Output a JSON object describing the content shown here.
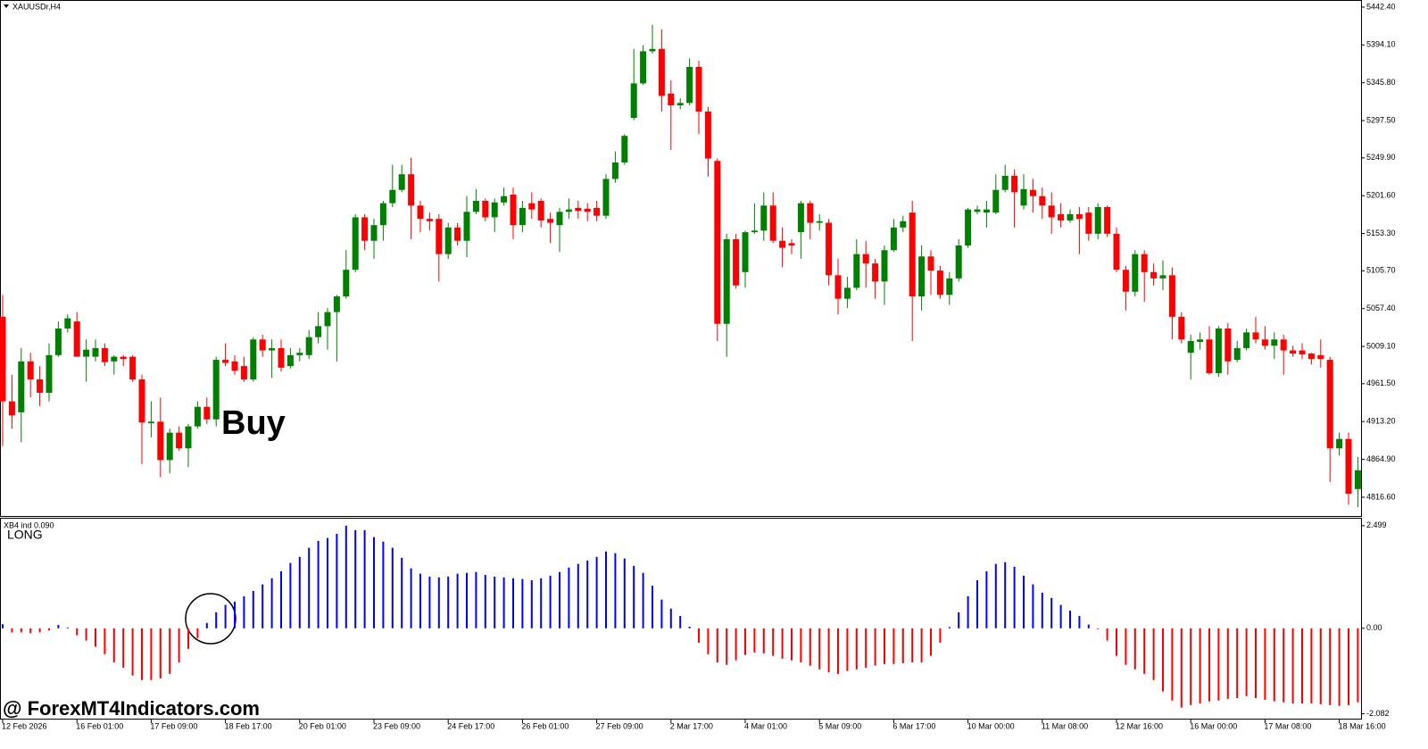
{
  "chart_data": [
    {
      "type": "candlestick",
      "title": "XAUUSDr,H4",
      "annotation": "Buy",
      "up_color": "#008000",
      "down_color": "#ff0000",
      "open": [
        5047,
        4939,
        4925,
        4990,
        4967,
        4950,
        4998,
        5032,
        5041,
        4996,
        4996,
        5007,
        4990,
        4996,
        4996,
        4967,
        4911,
        4913,
        4864,
        4899,
        4879,
        4907,
        4932,
        4916,
        4992,
        4990,
        4984,
        4967,
        5018,
        5004,
        5007,
        4984,
        4998,
        4998,
        5021,
        5035,
        5053,
        5073,
        5107,
        5174,
        5144,
        5164,
        5192,
        5209,
        5229,
        5189,
        5172,
        5172,
        5127,
        5161,
        5144,
        5181,
        5195,
        5174,
        5193,
        5203,
        5164,
        5192,
        5195,
        5172,
        5164,
        5181,
        5186,
        5185,
        5186,
        5176,
        5223,
        5244,
        5301,
        5345,
        5386,
        5389,
        5332,
        5317,
        5320,
        5366,
        5309,
        5246,
        5038,
        5146,
        5104,
        5155,
        5157,
        5189,
        5144,
        5141,
        5155,
        5192,
        5167,
        5167,
        5100,
        5070,
        5084,
        5127,
        5115,
        5092,
        5132,
        5161,
        5180,
        5073,
        5124,
        5106,
        5075,
        5096,
        5138,
        5181,
        5180,
        5180,
        5209,
        5227,
        5189,
        5209,
        5201,
        5189,
        5178,
        5170,
        5178,
        5180,
        5153,
        5187,
        5153,
        5107,
        5079,
        5127,
        5104,
        5096,
        5100,
        5047,
        5001,
        5015,
        5018,
        4975,
        5032,
        4992,
        5007,
        5027,
        5018,
        5010,
        5018,
        5004,
        5004,
        5000,
        4998,
        4992,
        4879,
        4891,
        4827
      ],
      "high": [
        5075,
        4973,
        5007,
        5001,
        4984,
        5013,
        5041,
        5050,
        5053,
        5018,
        5018,
        5013,
        4998,
        4998,
        4998,
        4973,
        4939,
        4944,
        4904,
        4907,
        4910,
        4939,
        4944,
        4996,
        5013,
        4998,
        4996,
        5021,
        5024,
        5018,
        5018,
        5007,
        5007,
        5030,
        5053,
        5058,
        5075,
        5132,
        5178,
        5178,
        5172,
        5195,
        5241,
        5241,
        5250,
        5195,
        5180,
        5178,
        5167,
        5167,
        5201,
        5210,
        5198,
        5198,
        5212,
        5212,
        5195,
        5206,
        5198,
        5180,
        5186,
        5198,
        5195,
        5192,
        5195,
        5229,
        5258,
        5280,
        5389,
        5394,
        5420,
        5414,
        5349,
        5326,
        5377,
        5374,
        5315,
        5249,
        5153,
        5153,
        5157,
        5192,
        5206,
        5206,
        5161,
        5146,
        5195,
        5195,
        5178,
        5172,
        5121,
        5098,
        5146,
        5144,
        5121,
        5138,
        5172,
        5176,
        5195,
        5138,
        5132,
        5112,
        5104,
        5146,
        5186,
        5189,
        5195,
        5229,
        5241,
        5235,
        5229,
        5223,
        5212,
        5206,
        5192,
        5184,
        5187,
        5187,
        5192,
        5189,
        5161,
        5112,
        5132,
        5132,
        5115,
        5119,
        5110,
        5053,
        5024,
        5027,
        5035,
        5035,
        5039,
        5016,
        5032,
        5047,
        5035,
        5027,
        5024,
        5010,
        5013,
        5001,
        5018,
        4996,
        4899,
        4899,
        4868
      ],
      "low": [
        4882,
        4904,
        4887,
        4944,
        4933,
        4939,
        4996,
        5027,
        4996,
        4964,
        4990,
        4984,
        4973,
        4984,
        4964,
        4859,
        4893,
        4842,
        4847,
        4876,
        4855,
        4904,
        4910,
        4907,
        4984,
        4973,
        4964,
        4964,
        4996,
        4969,
        4977,
        4981,
        4990,
        4993,
        5013,
        5005,
        4990,
        5070,
        5104,
        5132,
        5121,
        5144,
        5187,
        5206,
        5146,
        5155,
        5157,
        5092,
        5121,
        5138,
        5123,
        5178,
        5169,
        5155,
        5189,
        5146,
        5155,
        5172,
        5161,
        5141,
        5130,
        5172,
        5172,
        5169,
        5169,
        5172,
        5218,
        5241,
        5298,
        5343,
        5383,
        5309,
        5260,
        5312,
        5317,
        5280,
        5226,
        5016,
        4996,
        5083,
        5084,
        5153,
        5144,
        5141,
        5110,
        5127,
        5121,
        5146,
        5157,
        5087,
        5050,
        5058,
        5081,
        5084,
        5070,
        5062,
        5130,
        5155,
        5016,
        5055,
        5075,
        5070,
        5062,
        5092,
        5135,
        5178,
        5161,
        5178,
        5206,
        5161,
        5184,
        5180,
        5172,
        5153,
        5161,
        5167,
        5127,
        5144,
        5146,
        5149,
        5104,
        5055,
        5073,
        5066,
        5087,
        5081,
        5018,
        5013,
        4967,
        5005,
        4973,
        4970,
        4973,
        4989,
        5004,
        5013,
        5005,
        4993,
        4973,
        4996,
        4993,
        4986,
        4982,
        4836,
        4870,
        4807,
        4804
      ],
      "close": [
        4939,
        4921,
        4990,
        4967,
        4950,
        4998,
        5032,
        5045,
        4996,
        5005,
        5007,
        4989,
        4996,
        4993,
        4967,
        4912,
        4913,
        4864,
        4899,
        4879,
        4907,
        4932,
        4916,
        4992,
        4988,
        4978,
        4967,
        5018,
        5004,
        5007,
        4982,
        4998,
        5001,
        5021,
        5035,
        5053,
        5073,
        5107,
        5174,
        5144,
        5164,
        5192,
        5209,
        5229,
        5189,
        5172,
        5169,
        5127,
        5161,
        5144,
        5181,
        5195,
        5174,
        5193,
        5201,
        5164,
        5186,
        5184,
        5170,
        5167,
        5181,
        5184,
        5182,
        5181,
        5176,
        5223,
        5244,
        5278,
        5345,
        5386,
        5389,
        5329,
        5317,
        5320,
        5366,
        5309,
        5249,
        5038,
        5146,
        5087,
        5155,
        5157,
        5189,
        5144,
        5135,
        5138,
        5192,
        5167,
        5169,
        5100,
        5070,
        5084,
        5127,
        5115,
        5092,
        5132,
        5161,
        5169,
        5073,
        5124,
        5106,
        5075,
        5096,
        5138,
        5184,
        5184,
        5184,
        5209,
        5227,
        5206,
        5210,
        5201,
        5189,
        5174,
        5170,
        5178,
        5172,
        5153,
        5187,
        5153,
        5107,
        5079,
        5127,
        5104,
        5096,
        5100,
        5047,
        5018,
        5016,
        5018,
        4975,
        5032,
        4990,
        5007,
        5027,
        5018,
        5010,
        5018,
        5004,
        5000,
        4999,
        4993,
        4993,
        4879,
        4891,
        4821,
        4851
      ],
      "ylim": [
        4792.6,
        5449.2
      ],
      "yticks": [
        {
          "value": 5442.4,
          "label": "5442.40"
        },
        {
          "value": 5394.1,
          "label": "5394.10"
        },
        {
          "value": 5345.8,
          "label": "5345.80"
        },
        {
          "value": 5297.5,
          "label": "5297.50"
        },
        {
          "value": 5249.9,
          "label": "5249.90"
        },
        {
          "value": 5201.6,
          "label": "5201.60"
        },
        {
          "value": 5153.3,
          "label": "5153.30"
        },
        {
          "value": 5105.7,
          "label": "5105.70"
        },
        {
          "value": 5057.4,
          "label": "5057.40"
        },
        {
          "value": 5009.1,
          "label": "5009.10"
        },
        {
          "value": 4961.5,
          "label": "4961.50"
        },
        {
          "value": 4913.2,
          "label": "4913.20"
        },
        {
          "value": 4864.9,
          "label": "4864.90"
        },
        {
          "value": 4816.6,
          "label": "4816.60"
        }
      ],
      "xticks": [
        {
          "value": 0,
          "label": "12 Feb 2026"
        },
        {
          "value": 8,
          "label": "16 Feb 01:00"
        },
        {
          "value": 16,
          "label": "17 Feb 09:00"
        },
        {
          "value": 24,
          "label": "18 Feb 17:00"
        },
        {
          "value": 32,
          "label": "20 Feb 01:00"
        },
        {
          "value": 40,
          "label": "23 Feb 09:00"
        },
        {
          "value": 48,
          "label": "24 Feb 17:00"
        },
        {
          "value": 56,
          "label": "26 Feb 01:00"
        },
        {
          "value": 64,
          "label": "27 Feb 09:00"
        },
        {
          "value": 72,
          "label": "2 Mar 17:00"
        },
        {
          "value": 80,
          "label": "4 Mar 01:00"
        },
        {
          "value": 88,
          "label": "5 Mar 09:00"
        },
        {
          "value": 96,
          "label": "6 Mar 17:00"
        },
        {
          "value": 104,
          "label": "10 Mar 00:00"
        },
        {
          "value": 112,
          "label": "11 Mar 08:00"
        },
        {
          "value": 120,
          "label": "12 Mar 16:00"
        },
        {
          "value": 128,
          "label": "16 Mar 00:00"
        },
        {
          "value": 136,
          "label": "17 Mar 08:00"
        },
        {
          "value": 144,
          "label": "18 Mar 16:00"
        }
      ]
    },
    {
      "type": "bar",
      "title": "XB4 ind 0.090",
      "label": "LONG",
      "label_color": "#33dd33",
      "positive_color": "#0000ff",
      "negative_color": "#ff0000",
      "values": [
        0.1,
        -0.1,
        -0.1,
        -0.12,
        -0.1,
        -0.05,
        0.08,
        0.02,
        -0.17,
        -0.3,
        -0.45,
        -0.63,
        -0.83,
        -0.96,
        -1.15,
        -1.26,
        -1.26,
        -1.22,
        -1.11,
        -0.83,
        -0.5,
        -0.24,
        0.13,
        0.39,
        0.57,
        0.65,
        0.78,
        0.91,
        1.07,
        1.22,
        1.39,
        1.59,
        1.74,
        1.96,
        2.13,
        2.2,
        2.3,
        2.499,
        2.39,
        2.39,
        2.22,
        2.11,
        1.96,
        1.72,
        1.46,
        1.33,
        1.26,
        1.24,
        1.26,
        1.33,
        1.35,
        1.37,
        1.3,
        1.26,
        1.24,
        1.22,
        1.2,
        1.17,
        1.22,
        1.28,
        1.37,
        1.48,
        1.57,
        1.65,
        1.74,
        1.87,
        1.83,
        1.7,
        1.52,
        1.35,
        1.04,
        0.7,
        0.48,
        0.3,
        0.04,
        -0.35,
        -0.63,
        -0.83,
        -0.89,
        -0.78,
        -0.65,
        -0.59,
        -0.61,
        -0.67,
        -0.74,
        -0.78,
        -0.83,
        -0.91,
        -1.0,
        -1.07,
        -1.11,
        -1.04,
        -1.0,
        -0.96,
        -0.91,
        -0.87,
        -0.87,
        -0.85,
        -0.83,
        -0.83,
        -0.67,
        -0.35,
        0.03,
        0.39,
        0.78,
        1.17,
        1.39,
        1.57,
        1.61,
        1.5,
        1.28,
        1.07,
        0.87,
        0.74,
        0.57,
        0.43,
        0.3,
        0.09,
        -0.02,
        -0.3,
        -0.67,
        -0.89,
        -1.0,
        -1.11,
        -1.26,
        -1.54,
        -1.76,
        -1.93,
        -1.87,
        -1.83,
        -1.78,
        -1.76,
        -1.72,
        -1.7,
        -1.65,
        -1.7,
        -1.74,
        -1.78,
        -1.8,
        -1.83,
        -1.83,
        -1.83,
        -1.85,
        -1.87,
        -1.89,
        -1.87,
        -1.8
      ],
      "ylim": [
        -2.2,
        2.67
      ],
      "yticks": [
        2.499,
        {
          "value": 0,
          "label": "0.00"
        },
        -2.082
      ]
    }
  ],
  "watermark": "@ ForexMT4Indicators.com"
}
